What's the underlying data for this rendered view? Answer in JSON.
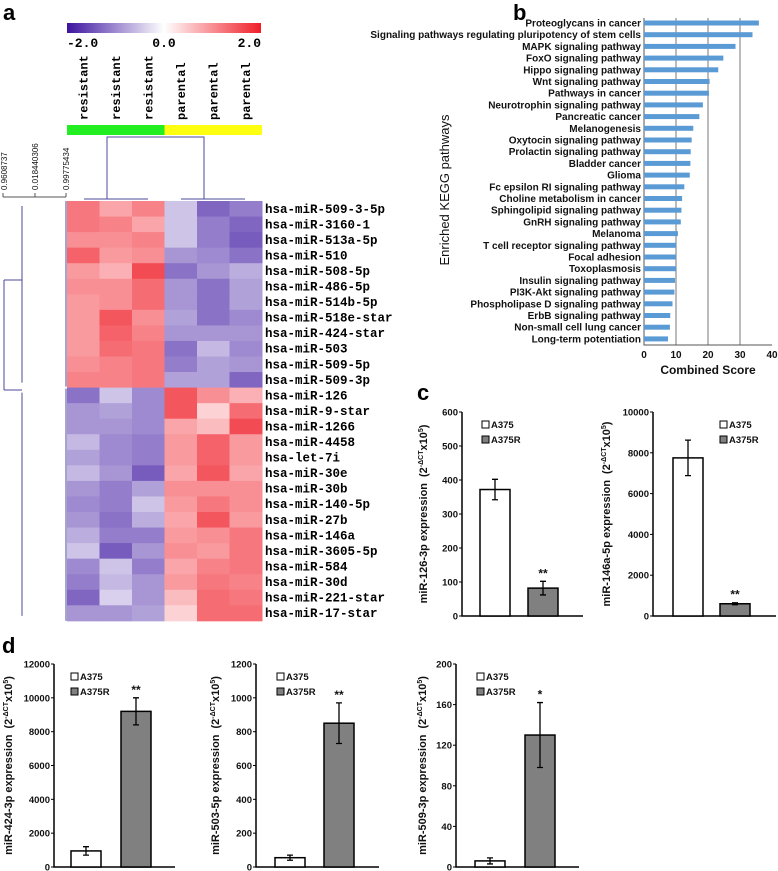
{
  "panels": {
    "a": "a",
    "b": "b",
    "c": "c",
    "d": "d"
  },
  "colors": {
    "heat_low": "#3c14a0",
    "heat_mid": "#ffffff",
    "heat_high": "#f01e28",
    "resistant": "#22ee22",
    "parental": "#ffff11",
    "kegg_bar": "#5b9bd5",
    "dendro": "#4a4a9a",
    "a375": "#ffffff",
    "a375r": "#808080"
  },
  "heatmap": {
    "colorbar_labels": [
      "-2.0",
      "0.0",
      "2.0"
    ],
    "color_range": [
      -2,
      2
    ],
    "columns": [
      "resistant",
      "resistant",
      "resistant",
      "parental",
      "parental",
      "parental"
    ],
    "dendro_scale_labels": [
      "0.9608737",
      "0.018440306",
      "0.99775434"
    ],
    "rows": [
      "hsa-miR-509-3-5p",
      "hsa-miR-3160-1",
      "hsa-miR-513a-5p",
      "hsa-miR-510",
      "hsa-miR-508-5p",
      "hsa-miR-486-5p",
      "hsa-miR-514b-5p",
      "hsa-miR-518e-star",
      "hsa-miR-424-star",
      "hsa-miR-503",
      "hsa-miR-509-5p",
      "hsa-miR-509-3p",
      "hsa-miR-126",
      "hsa-miR-9-star",
      "hsa-miR-1266",
      "hsa-miR-4458",
      "hsa-let-7i",
      "hsa-miR-30e",
      "hsa-miR-30b",
      "hsa-miR-140-5p",
      "hsa-miR-27b",
      "hsa-miR-146a",
      "hsa-miR-3605-5p",
      "hsa-miR-584",
      "hsa-miR-30d",
      "hsa-miR-221-star",
      "hsa-miR-17-star"
    ],
    "values": [
      [
        1.2,
        0.8,
        1.1,
        -0.5,
        -1.3,
        -1.1
      ],
      [
        1.2,
        1.1,
        0.8,
        -0.5,
        -1.1,
        -1.3
      ],
      [
        1.0,
        1.0,
        1.1,
        -0.5,
        -1.1,
        -1.4
      ],
      [
        1.4,
        0.9,
        1.0,
        -0.9,
        -1.0,
        -1.2
      ],
      [
        0.9,
        0.7,
        1.6,
        -1.2,
        -0.9,
        -0.7
      ],
      [
        1.0,
        1.0,
        1.3,
        -0.9,
        -1.2,
        -0.8
      ],
      [
        0.9,
        1.0,
        1.3,
        -0.9,
        -1.2,
        -0.8
      ],
      [
        0.9,
        1.5,
        1.0,
        -0.8,
        -1.2,
        -1.0
      ],
      [
        0.9,
        1.4,
        1.1,
        -0.9,
        -0.9,
        -0.9
      ],
      [
        0.9,
        1.3,
        1.2,
        -1.2,
        -0.6,
        -1.0
      ],
      [
        1.0,
        1.1,
        1.2,
        -1.1,
        -0.8,
        -0.9
      ],
      [
        1.1,
        1.1,
        1.2,
        -0.8,
        -0.8,
        -1.3
      ],
      [
        -1.2,
        -0.5,
        -1.0,
        1.5,
        1.0,
        0.7
      ],
      [
        -0.9,
        -0.8,
        -1.0,
        1.5,
        0.4,
        1.3
      ],
      [
        -0.9,
        -0.9,
        -1.0,
        0.8,
        0.6,
        1.6
      ],
      [
        -0.6,
        -1.0,
        -1.1,
        0.9,
        1.4,
        0.9
      ],
      [
        -0.8,
        -1.0,
        -1.1,
        0.9,
        1.4,
        0.9
      ],
      [
        -0.6,
        -0.9,
        -1.4,
        0.8,
        1.5,
        0.8
      ],
      [
        -0.9,
        -1.1,
        -0.8,
        1.0,
        1.0,
        1.0
      ],
      [
        -1.0,
        -1.1,
        -0.5,
        0.9,
        1.2,
        1.0
      ],
      [
        -0.9,
        -1.2,
        -0.7,
        0.8,
        1.5,
        0.9
      ],
      [
        -0.7,
        -1.1,
        -1.1,
        0.9,
        1.0,
        1.2
      ],
      [
        -0.5,
        -1.4,
        -0.9,
        1.0,
        0.9,
        1.2
      ],
      [
        -1.0,
        -0.5,
        -1.1,
        0.8,
        1.1,
        1.2
      ],
      [
        -1.1,
        -0.6,
        -0.9,
        0.9,
        1.2,
        1.1
      ],
      [
        -1.3,
        -0.4,
        -0.9,
        0.6,
        1.3,
        1.2
      ],
      [
        -0.9,
        -0.9,
        -0.8,
        0.4,
        1.3,
        1.3
      ]
    ]
  },
  "chart_data": [
    {
      "type": "bar",
      "orientation": "horizontal",
      "panel": "b",
      "categories": [
        "Proteoglycans in cancer",
        "Signaling pathways regulating pluripotency of stem cells",
        "MAPK signaling pathway",
        "FoxO signaling pathway",
        "Hippo signaling pathway",
        "Wnt signaling pathway",
        "Pathways in cancer",
        "Neurotrophin signaling pathway",
        "Pancreatic cancer",
        "Melanogenesis",
        "Oxytocin signaling pathway",
        "Prolactin signaling pathway",
        "Bladder cancer",
        "Glioma",
        "Fc epsilon RI signaling pathway",
        "Choline metabolism in cancer",
        "Sphingolipid signaling pathway",
        "GnRH signaling pathway",
        "Melanoma",
        "T cell receptor signaling pathway",
        "Focal adhesion",
        "Toxoplasmosis",
        "Insulin signaling pathway",
        "PI3K-Akt signaling pathway",
        "Phospholipase D signaling pathway",
        "ErbB signaling pathway",
        "Non-small cell lung cancer",
        "Long-term potentiation"
      ],
      "values": [
        35.9,
        33.9,
        28.6,
        24.8,
        23.2,
        20.5,
        20.3,
        18.4,
        17.3,
        15.4,
        14.9,
        14.6,
        14.5,
        14.3,
        12.6,
        11.9,
        11.7,
        11.5,
        10.6,
        10.0,
        10.0,
        10.0,
        9.7,
        9.5,
        8.9,
        8.2,
        8.1,
        7.5
      ],
      "xlabel": "Combined Score",
      "ylabel": "Enriched KEGG pathways",
      "xlim": [
        0,
        40
      ],
      "xticks": [
        "0",
        "10",
        "20",
        "30",
        "40"
      ],
      "grid": true
    },
    {
      "type": "bar",
      "panel": "c",
      "categories": [
        "A375",
        "A375R"
      ],
      "values": [
        372,
        82
      ],
      "errors": [
        30,
        20
      ],
      "significance": [
        "",
        "**"
      ],
      "ylabel": "miR-126-3p expression",
      "ylim": [
        0,
        600
      ],
      "yticks": [
        "0",
        "100",
        "200",
        "300",
        "400",
        "500",
        "600"
      ],
      "legend": [
        "A375",
        "A375R"
      ],
      "legend_position": "top-right"
    },
    {
      "type": "bar",
      "panel": "c",
      "categories": [
        "A375",
        "A375R"
      ],
      "values": [
        7750,
        600
      ],
      "errors": [
        870,
        50
      ],
      "significance": [
        "",
        "**"
      ],
      "ylabel": "miR-146a-5p expression",
      "ylim": [
        0,
        10000
      ],
      "yticks": [
        "0",
        "2000",
        "4000",
        "6000",
        "8000",
        "10000"
      ],
      "legend": [
        "A375",
        "A375R"
      ],
      "legend_position": "top-right"
    },
    {
      "type": "bar",
      "panel": "d",
      "categories": [
        "A375",
        "A375R"
      ],
      "values": [
        950,
        9200
      ],
      "errors": [
        250,
        800
      ],
      "significance": [
        "",
        "**"
      ],
      "ylabel": "miR-424-3p expression",
      "ylim": [
        0,
        12000
      ],
      "yticks": [
        "0",
        "2000",
        "4000",
        "6000",
        "8000",
        "10000",
        "12000"
      ],
      "legend": [
        "A375",
        "A375R"
      ],
      "legend_position": "top-left"
    },
    {
      "type": "bar",
      "panel": "d",
      "categories": [
        "A375",
        "A375R"
      ],
      "values": [
        55,
        850
      ],
      "errors": [
        15,
        120
      ],
      "significance": [
        "",
        "**"
      ],
      "ylabel": "miR-503-5p expression",
      "ylim": [
        0,
        1200
      ],
      "yticks": [
        "0",
        "200",
        "400",
        "600",
        "800",
        "1000",
        "1200"
      ],
      "legend": [
        "A375",
        "A375R"
      ],
      "legend_position": "top-left"
    },
    {
      "type": "bar",
      "panel": "d",
      "categories": [
        "A375",
        "A375R"
      ],
      "values": [
        6,
        130
      ],
      "errors": [
        3,
        32
      ],
      "significance": [
        "",
        "*"
      ],
      "ylabel": "miR-509-3p expression",
      "ylim": [
        0,
        200
      ],
      "yticks": [
        "0",
        "40",
        "80",
        "120",
        "160",
        "200"
      ],
      "legend": [
        "A375",
        "A375R"
      ],
      "legend_position": "top-left"
    }
  ],
  "unit": {
    "open": "(2",
    "exp": "-ΔCT",
    "mid": "x10",
    "exp2": "5",
    "close": ")"
  }
}
